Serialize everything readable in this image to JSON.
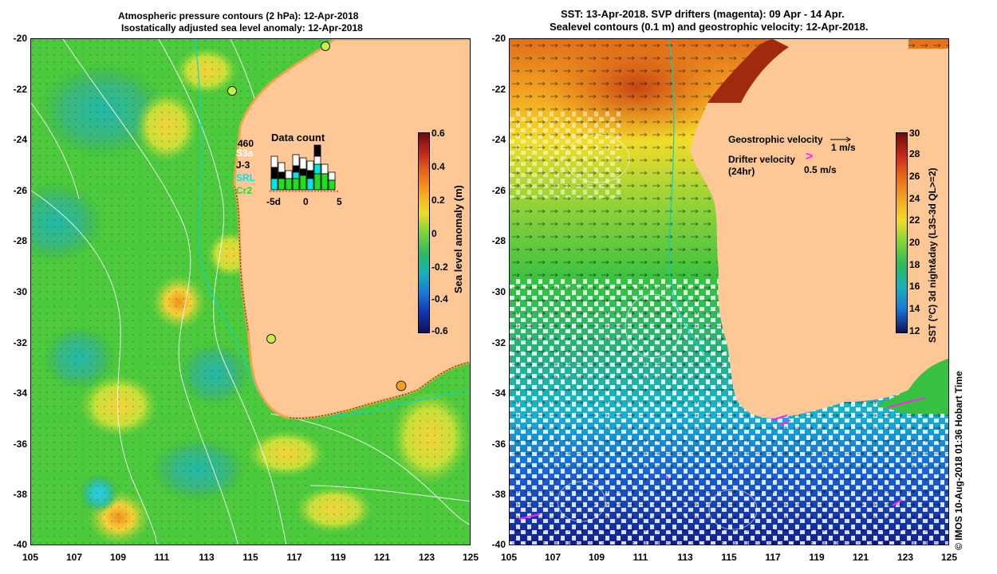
{
  "left_panel": {
    "title_line1": "Atmospheric pressure contours (2 hPa): 12-Apr-2018",
    "title_line2": "Isostatically adjusted sea level anomaly: 12-Apr-2018",
    "y_ticks": [
      "-20",
      "-22",
      "-24",
      "-26",
      "-28",
      "-30",
      "-32",
      "-34",
      "-36",
      "-38",
      "-40"
    ],
    "x_ticks": [
      "105",
      "107",
      "109",
      "111",
      "113",
      "115",
      "117",
      "119",
      "121",
      "123",
      "125"
    ],
    "data_count": {
      "title": "Data count",
      "count": "460",
      "satellites": [
        {
          "name": "S3a",
          "color": "#ffffff"
        },
        {
          "name": "J-3",
          "color": "#000000"
        },
        {
          "name": "SRL",
          "color": "#00e5e5"
        },
        {
          "name": "Cr2",
          "color": "#22dd22"
        }
      ],
      "x_labels": [
        "-5d",
        "0",
        "5"
      ]
    },
    "colorbar": {
      "label": "Sea level anomaly (m)",
      "ticks": [
        "0.6",
        "0.4",
        "0.2",
        "0",
        "-0.2",
        "-0.4",
        "-0.6"
      ]
    },
    "colors": {
      "land": "#fdc896",
      "ocean_green": "#4cc93c",
      "tide_gauge": "#c8f04a"
    }
  },
  "right_panel": {
    "title_line1": "SST: 13-Apr-2018. SVP drifters (magenta): 09 Apr - 14 Apr.",
    "title_line2": "Sealevel contours (0.1 m) and geostrophic velocity: 12-Apr-2018.",
    "y_ticks": [
      "-20",
      "-22",
      "-24",
      "-26",
      "-28",
      "-30",
      "-32",
      "-34",
      "-36",
      "-38",
      "-40"
    ],
    "x_ticks": [
      "105",
      "107",
      "109",
      "111",
      "113",
      "115",
      "117",
      "119",
      "121",
      "123",
      "125"
    ],
    "legend": {
      "geostrophic": "Geostrophic velocity",
      "geostrophic_unit": "1 m/s",
      "drifter": "Drifter velocity",
      "drifter_period": "(24hr)",
      "drifter_unit": "0.5 m/s",
      "drifter_symbol": ">"
    },
    "colorbar": {
      "label": "SST (°C) 3d night&day (L3S-3d QL>=2)",
      "ticks": [
        "30",
        "28",
        "26",
        "24",
        "22",
        "20",
        "18",
        "16",
        "14",
        "12"
      ]
    },
    "colors": {
      "land": "#fdc896",
      "drifter": "#ff22ff"
    }
  },
  "credit": "© IMOS 10-Aug-2018 01:36 Hobart Time"
}
